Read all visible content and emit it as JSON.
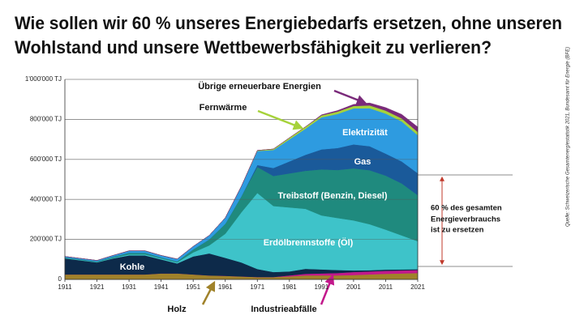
{
  "chart_data": {
    "type": "stacked_area",
    "title": [
      "Wie sollen wir 60 % unseres Energiebedarfs ersetzen, ohne unseren",
      "Wohlstand und unsere Wettbewerbsfähigkeit zu verlieren?"
    ],
    "x": [
      1911,
      1916,
      1921,
      1926,
      1931,
      1936,
      1941,
      1946,
      1951,
      1956,
      1961,
      1966,
      1971,
      1976,
      1981,
      1986,
      1991,
      1996,
      2001,
      2006,
      2011,
      2016,
      2021
    ],
    "series": [
      {
        "name": "Holz",
        "color": "#a0822a",
        "values": [
          25000,
          25000,
          25000,
          25000,
          25000,
          25000,
          30000,
          30000,
          25000,
          20000,
          18000,
          15000,
          12000,
          12000,
          15000,
          20000,
          20000,
          20000,
          22000,
          25000,
          28000,
          30000,
          32000
        ]
      },
      {
        "name": "Industrieabfälle",
        "color": "#c2188b",
        "values": [
          0,
          0,
          0,
          0,
          0,
          0,
          0,
          0,
          0,
          0,
          0,
          0,
          0,
          0,
          5000,
          8000,
          10000,
          12000,
          15000,
          15000,
          15000,
          15000,
          15000
        ]
      },
      {
        "name": "Kohle",
        "color": "#0d2a4a",
        "values": [
          80000,
          70000,
          60000,
          80000,
          95000,
          95000,
          70000,
          50000,
          90000,
          110000,
          90000,
          70000,
          40000,
          25000,
          20000,
          25000,
          20000,
          15000,
          8000,
          6000,
          6000,
          5000,
          4000
        ]
      },
      {
        "name": "Erdölbrennstoffe (Öl)",
        "color": "#3ec3c9",
        "values": [
          2000,
          2000,
          2000,
          3000,
          5000,
          5000,
          5000,
          5000,
          20000,
          40000,
          120000,
          250000,
          380000,
          330000,
          320000,
          300000,
          270000,
          260000,
          250000,
          230000,
          200000,
          170000,
          140000
        ]
      },
      {
        "name": "Treibstoff (Benzin, Diesel)",
        "color": "#1f8a7e",
        "values": [
          3000,
          3000,
          3000,
          5000,
          8000,
          8000,
          5000,
          5000,
          15000,
          30000,
          50000,
          80000,
          130000,
          150000,
          170000,
          190000,
          230000,
          240000,
          260000,
          270000,
          270000,
          260000,
          230000
        ]
      },
      {
        "name": "Gas",
        "color": "#1a5a9a",
        "values": [
          0,
          0,
          0,
          0,
          0,
          0,
          0,
          0,
          0,
          0,
          0,
          0,
          10000,
          40000,
          60000,
          80000,
          100000,
          110000,
          120000,
          120000,
          110000,
          110000,
          110000
        ]
      },
      {
        "name": "Elektrizität",
        "color": "#2e9be0",
        "values": [
          5000,
          5000,
          5000,
          7000,
          10000,
          10000,
          10000,
          12000,
          15000,
          20000,
          30000,
          50000,
          70000,
          90000,
          110000,
          130000,
          160000,
          170000,
          180000,
          190000,
          200000,
          200000,
          190000
        ]
      },
      {
        "name": "Fernwärme",
        "color": "#a6d23a",
        "values": [
          0,
          0,
          0,
          0,
          0,
          0,
          0,
          0,
          0,
          0,
          0,
          0,
          3000,
          5000,
          8000,
          10000,
          10000,
          12000,
          12000,
          14000,
          15000,
          15000,
          16000
        ]
      },
      {
        "name": "Übrige erneuerbare Energien",
        "color": "#7a2a7a",
        "values": [
          0,
          0,
          0,
          0,
          0,
          0,
          0,
          0,
          0,
          0,
          0,
          0,
          0,
          0,
          0,
          0,
          3000,
          5000,
          8000,
          12000,
          15000,
          20000,
          25000
        ]
      }
    ],
    "xlim": [
      1911,
      2021
    ],
    "xticks": [
      1911,
      1921,
      1931,
      1941,
      1951,
      1961,
      1971,
      1981,
      1991,
      2001,
      2011,
      2021
    ],
    "ylim": [
      0,
      1000000
    ],
    "yticks": [
      0,
      {
        "value": 200000,
        "label": "200'000 TJ"
      },
      {
        "value": 400000,
        "label": "400'000 TJ"
      },
      {
        "value": 600000,
        "label": "600'000 TJ"
      },
      {
        "value": 800000,
        "label": "800'000 TJ"
      },
      {
        "value": 1000000,
        "label": "1'000'000 TJ"
      }
    ],
    "grid": true,
    "annotation": [
      "60 % des gesamten",
      "Energieverbrauchs",
      "ist zu ersetzen"
    ],
    "source": "Quelle: Schweizerische Gesamtenergiestatistik 2021, Bundesamt für Energie (BFE)"
  }
}
